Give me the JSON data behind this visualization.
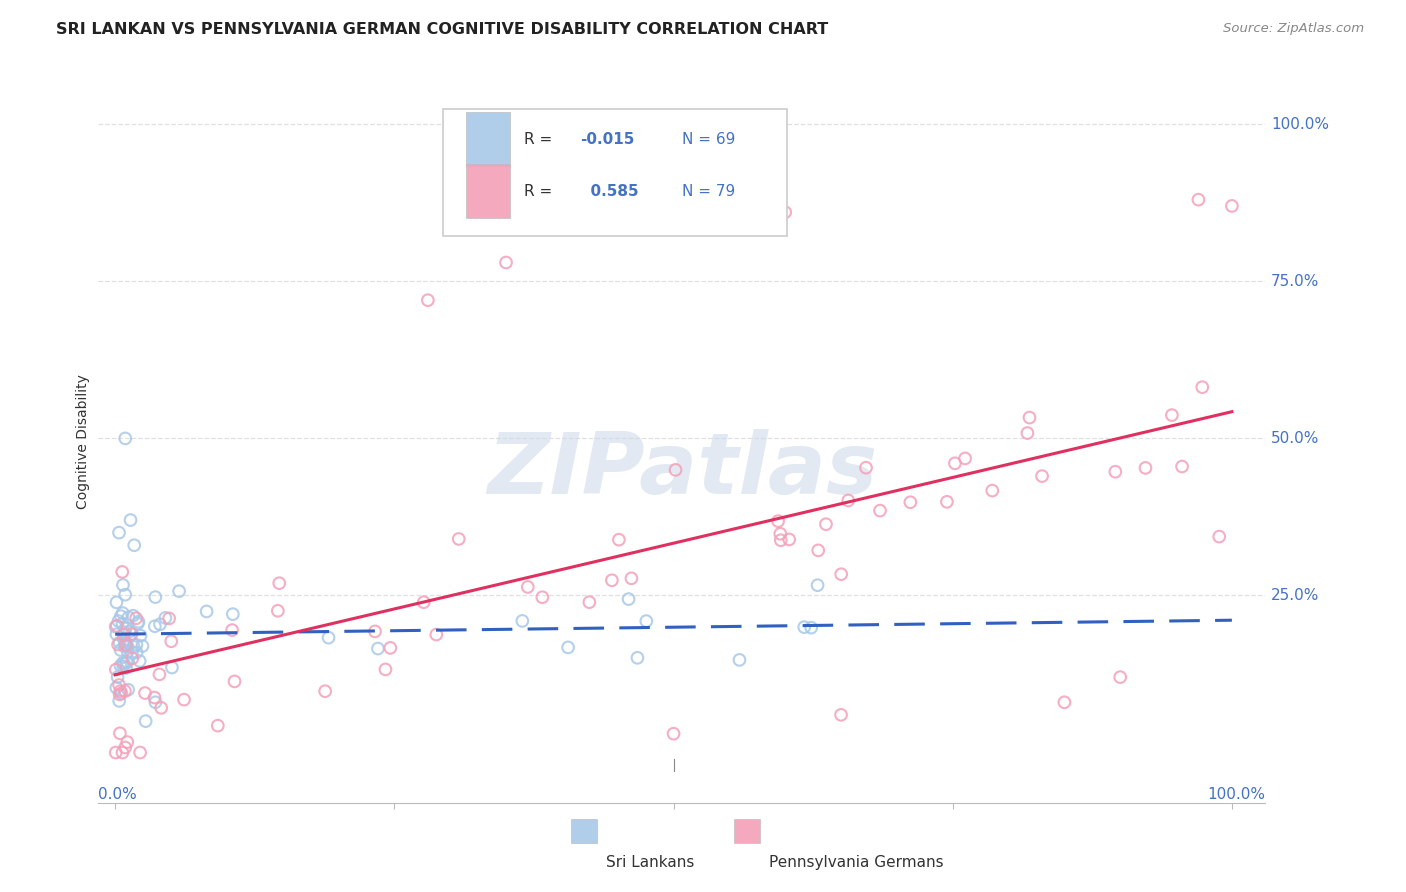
{
  "title": "SRI LANKAN VS PENNSYLVANIA GERMAN COGNITIVE DISABILITY CORRELATION CHART",
  "source": "Source: ZipAtlas.com",
  "ylabel": "Cognitive Disability",
  "background_color": "#ffffff",
  "grid_color": "#e0e0e0",
  "sri_lankan_color": "#a8c8e8",
  "penn_german_color": "#f4a0b8",
  "sri_lankan_line_color": "#3060c0",
  "penn_german_line_color": "#e03060",
  "sri_lankan_R": -0.015,
  "sri_lankan_N": 69,
  "penn_german_R": 0.585,
  "penn_german_N": 79,
  "watermark": "ZIPatlas",
  "tick_color": "#4472c4",
  "title_fontsize": 11.5,
  "label_fontsize": 11,
  "tick_fontsize": 11
}
